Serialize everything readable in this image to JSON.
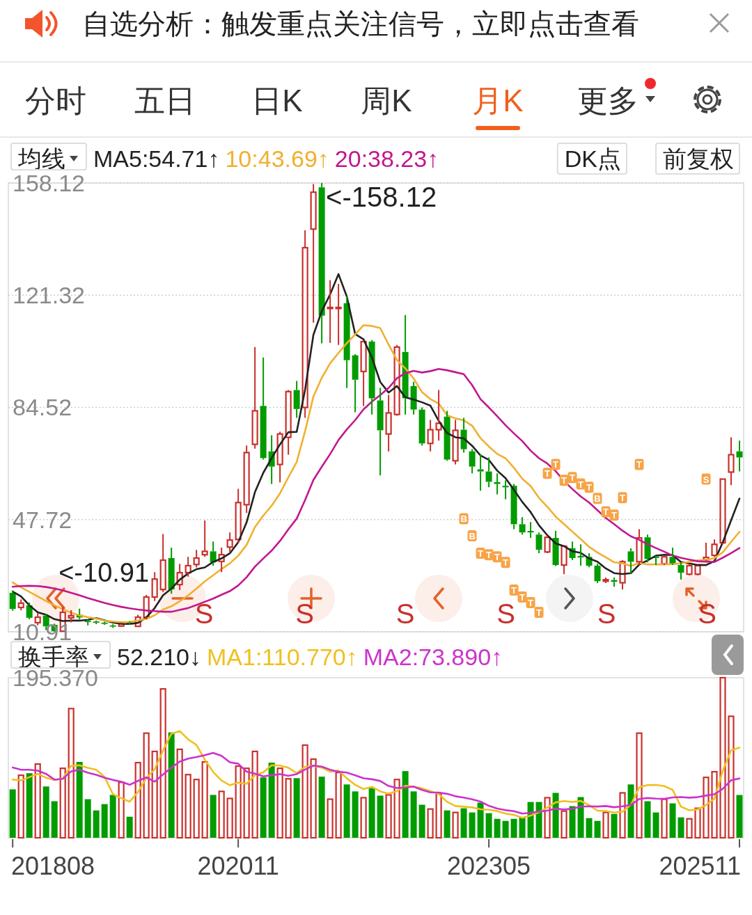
{
  "chart_data": [
    {
      "type": "other",
      "title": "自选分析：触发重点关注信号，立即点击查看",
      "annotations": [
        "分时",
        "五日",
        "日K",
        "周K",
        "月K",
        "更多",
        "DK点",
        "前复权"
      ]
    },
    {
      "type": "candlestick",
      "legend_title": "均线",
      "legend": "top",
      "grid": "y",
      "tick_labels": "y",
      "x": [
        "2018-08",
        "2018-09",
        "2018-10",
        "2018-11",
        "2018-12",
        "2019-01",
        "2019-02",
        "2019-03",
        "2019-04",
        "2019-05",
        "2019-06",
        "2019-07",
        "2019-08",
        "2019-09",
        "2019-10",
        "2019-11",
        "2019-12",
        "2020-01",
        "2020-02",
        "2020-03",
        "2020-04",
        "2020-05",
        "2020-06",
        "2020-07",
        "2020-08",
        "2020-09",
        "2020-10",
        "2020-11",
        "2020-12",
        "2021-01",
        "2021-02",
        "2021-03",
        "2021-04",
        "2021-05",
        "2021-06",
        "2021-07",
        "2021-08",
        "2021-09",
        "2021-10",
        "2021-11",
        "2021-12",
        "2022-01",
        "2022-02",
        "2022-03",
        "2022-04",
        "2022-05",
        "2022-06",
        "2022-07",
        "2022-08",
        "2022-09",
        "2022-10",
        "2022-11",
        "2022-12",
        "2023-01",
        "2023-02",
        "2023-03",
        "2023-04",
        "2023-05",
        "2023-06",
        "2023-07",
        "2023-08",
        "2023-09",
        "2023-10",
        "2023-11",
        "2023-12",
        "2024-01",
        "2024-02",
        "2024-03",
        "2024-04",
        "2024-05",
        "2024-06",
        "2024-07",
        "2024-08",
        "2024-09",
        "2024-10",
        "2024-11",
        "2024-12",
        "2025-01",
        "2025-02",
        "2025-03",
        "2025-04",
        "2025-05",
        "2025-06",
        "2025-07",
        "2025-08",
        "2025-09",
        "2025-10",
        "2025-11"
      ],
      "xlim": [
        "2018-07-16",
        "2025-11-16"
      ],
      "ylim": [
        10.91,
        158.12
      ],
      "yticks": [
        10.91,
        47.72,
        84.52,
        121.32,
        158.12
      ],
      "ohlc": [
        [
          23.7,
          24.5,
          17.8,
          18.4
        ],
        [
          18.9,
          21.5,
          18.0,
          20.3
        ],
        [
          19.6,
          20.5,
          15.0,
          15.5
        ],
        [
          13.9,
          17.0,
          13.0,
          15.7
        ],
        [
          16.2,
          16.8,
          11.5,
          12.7
        ],
        [
          13.2,
          13.6,
          10.91,
          11.1
        ],
        [
          11.1,
          19.0,
          10.95,
          17.3
        ],
        [
          15.5,
          18.0,
          14.0,
          16.2
        ],
        [
          16.5,
          18.5,
          15.0,
          15.6
        ],
        [
          14.5,
          15.0,
          13.0,
          14.1
        ],
        [
          14.3,
          14.6,
          13.4,
          13.9
        ],
        [
          13.9,
          14.2,
          13.2,
          13.5
        ],
        [
          13.0,
          13.4,
          12.2,
          12.6
        ],
        [
          12.8,
          14.0,
          12.5,
          13.6
        ],
        [
          14.0,
          14.4,
          13.2,
          13.8
        ],
        [
          12.7,
          16.5,
          12.5,
          15.7
        ],
        [
          15.7,
          23.0,
          15.0,
          22.3
        ],
        [
          22.3,
          30.5,
          21.0,
          28.2
        ],
        [
          24.8,
          43.0,
          24.0,
          34.4
        ],
        [
          35.1,
          38.5,
          23.4,
          24.8
        ],
        [
          26.4,
          33.2,
          24.6,
          30.3
        ],
        [
          30.3,
          35.5,
          29.0,
          32.6
        ],
        [
          33.0,
          37.8,
          32.0,
          35.1
        ],
        [
          36.2,
          47.4,
          35.5,
          37.3
        ],
        [
          37.3,
          40.5,
          32.6,
          33.7
        ],
        [
          34.0,
          38.5,
          30.5,
          36.2
        ],
        [
          38.7,
          43.5,
          37.1,
          41.0
        ],
        [
          41.2,
          57.8,
          40.0,
          53.3
        ],
        [
          52.6,
          72.0,
          49.9,
          69.7
        ],
        [
          72.4,
          104.3,
          71.0,
          83.4
        ],
        [
          85.0,
          100.9,
          67.4,
          67.9
        ],
        [
          70.1,
          75.4,
          59.4,
          65.1
        ],
        [
          65.8,
          76.5,
          59.9,
          75.8
        ],
        [
          74.7,
          90.2,
          69.0,
          89.7
        ],
        [
          90.2,
          93.2,
          81.1,
          84.0
        ],
        [
          84.5,
          142.6,
          81.1,
          136.9
        ],
        [
          143.0,
          157.8,
          112.3,
          155.1
        ],
        [
          156.7,
          158.12,
          105.5,
          114.6
        ],
        [
          117.0,
          126.2,
          105.7,
          117.3
        ],
        [
          117.0,
          125.0,
          105.0,
          117.3
        ],
        [
          118.7,
          121.0,
          90.9,
          100.0
        ],
        [
          101.6,
          102.0,
          82.9,
          93.6
        ],
        [
          96.3,
          106.6,
          85.0,
          106.1
        ],
        [
          106.1,
          106.6,
          82.2,
          87.5
        ],
        [
          86.8,
          90.9,
          62.2,
          77.0
        ],
        [
          75.8,
          88.6,
          70.1,
          82.7
        ],
        [
          82.2,
          105.0,
          81.8,
          104.3
        ],
        [
          102.7,
          114.8,
          82.2,
          87.5
        ],
        [
          91.5,
          92.9,
          82.2,
          83.8
        ],
        [
          83.8,
          84.5,
          72.0,
          72.7
        ],
        [
          72.7,
          80.4,
          70.1,
          77.2
        ],
        [
          77.2,
          90.2,
          73.6,
          79.3
        ],
        [
          81.5,
          83.4,
          67.0,
          67.4
        ],
        [
          67.0,
          80.4,
          65.8,
          77.0
        ],
        [
          77.2,
          81.1,
          69.7,
          70.8
        ],
        [
          70.1,
          70.8,
          62.9,
          65.1
        ],
        [
          64.2,
          69.2,
          57.2,
          63.5
        ],
        [
          63.5,
          68.1,
          58.3,
          60.1
        ],
        [
          60.0,
          62.9,
          56.0,
          59.4
        ],
        [
          58.8,
          60.6,
          54.4,
          58.3
        ],
        [
          58.8,
          59.4,
          44.6,
          46.2
        ],
        [
          46.2,
          48.5,
          42.8,
          43.5
        ],
        [
          44.0,
          46.9,
          41.7,
          43.5
        ],
        [
          42.8,
          43.5,
          36.7,
          37.8
        ],
        [
          37.1,
          42.4,
          36.7,
          41.9
        ],
        [
          41.7,
          44.0,
          32.5,
          32.8
        ],
        [
          32.8,
          39.4,
          29.8,
          39.0
        ],
        [
          38.3,
          40.5,
          34.4,
          35.1
        ],
        [
          35.8,
          39.6,
          32.6,
          35.3
        ],
        [
          35.5,
          36.7,
          32.1,
          32.6
        ],
        [
          32.6,
          33.2,
          26.9,
          27.5
        ],
        [
          27.5,
          28.7,
          26.9,
          28.0
        ],
        [
          27.9,
          28.7,
          25.7,
          27.3
        ],
        [
          27.0,
          34.4,
          24.8,
          33.9
        ],
        [
          37.3,
          38.3,
          30.0,
          33.9
        ],
        [
          33.9,
          44.6,
          32.8,
          41.7
        ],
        [
          41.9,
          42.8,
          33.7,
          34.8
        ],
        [
          35.5,
          35.8,
          32.8,
          35.1
        ],
        [
          33.2,
          36.0,
          32.8,
          35.5
        ],
        [
          35.5,
          38.5,
          32.8,
          33.2
        ],
        [
          32.8,
          33.7,
          28.0,
          30.3
        ],
        [
          29.8,
          33.2,
          29.4,
          32.6
        ],
        [
          29.8,
          32.8,
          29.4,
          32.6
        ],
        [
          34.5,
          40.1,
          34.0,
          35.3
        ],
        [
          36.0,
          41.2,
          35.5,
          39.6
        ],
        [
          40.1,
          61.0,
          39.6,
          61.0
        ],
        [
          63.3,
          74.7,
          59.0,
          69.0
        ],
        [
          70.1,
          73.6,
          63.5,
          68.1
        ]
      ],
      "series": [
        {
          "name": "MA5:54.71↑",
          "type": "line",
          "color": "#222222",
          "values": [
            24.1,
            22.5,
            19.6,
            17.3,
            16.52,
            15.06,
            14.46,
            14.6,
            14.58,
            14.86,
            15.42,
            14.66,
            13.94,
            13.54,
            13.48,
            13.84,
            15.6,
            18.72,
            22.88,
            25.08,
            28.0,
            30.06,
            31.44,
            32.02,
            33.8,
            34.98,
            36.66,
            40.3,
            46.78,
            56.72,
            63.06,
            67.88,
            72.38,
            76.38,
            76.5,
            90.3,
            108.3,
            116.06,
            121.58,
            128.24,
            120.86,
            108.56,
            106.86,
            100.9,
            92.84,
            89.38,
            91.52,
            87.8,
            87.06,
            86.2,
            85.1,
            80.1,
            76.08,
            74.72,
            74.34,
            71.92,
            68.76,
            67.3,
            63.78,
            61.28,
            57.5,
            53.5,
            50.18,
            45.86,
            42.58,
            39.9,
            39.0,
            37.32,
            36.82,
            34.96,
            33.9,
            31.7,
            30.14,
            29.86,
            30.12,
            32.96,
            34.32,
            35.88,
            36.2,
            36.06,
            33.78,
            33.34,
            32.84,
            32.8,
            34.08,
            40.22,
            47.5,
            54.6
          ]
        },
        {
          "name": "10:43.69↑",
          "type": "line",
          "color": "#f0b030",
          "values": [
            27.1,
            25.5,
            24.0,
            22.5,
            21.0,
            19.6,
            18.3,
            17.2,
            16.3,
            15.69,
            15.24,
            14.56,
            14.27,
            14.06,
            14.17,
            14.63,
            15.13,
            16.33,
            18.21,
            19.28,
            20.92,
            22.83,
            25.08,
            27.45,
            29.44,
            31.49,
            33.36,
            35.87,
            39.4,
            45.26,
            49.02,
            52.27,
            56.34,
            61.58,
            66.61,
            76.68,
            88.09,
            94.22,
            98.98,
            102.37,
            105.58,
            108.43,
            111.46,
            111.24,
            110.54,
            105.12,
            100.04,
            97.33,
            93.98,
            89.52,
            87.24,
            85.81,
            81.94,
            80.89,
            80.27,
            78.51,
            74.43,
            71.69,
            69.25,
            67.81,
            64.71,
            61.13,
            58.74,
            54.82,
            51.93,
            48.7,
            46.25,
            43.75,
            41.34,
            38.77,
            36.9,
            35.35,
            33.73,
            33.34,
            32.54,
            33.43,
            33.01,
            33.01,
            33.03,
            33.09,
            33.37,
            33.83,
            34.36,
            34.5,
            35.07,
            37.0,
            40.42,
            43.72
          ]
        },
        {
          "name": "20:38.23↑",
          "type": "line",
          "color": "#c2188f",
          "values": [
            25.7,
            25.9,
            26.0,
            25.9,
            25.6,
            25.1,
            24.5,
            23.7,
            22.9,
            22.0,
            21.2,
            20.4,
            19.7,
            19.1,
            18.6,
            18.2,
            17.9,
            17.7,
            17.5,
            17.49,
            18.08,
            18.7,
            19.68,
            20.76,
            21.81,
            23.06,
            24.25,
            26.1,
            28.81,
            32.27,
            34.97,
            37.55,
            40.71,
            44.52,
            48.03,
            54.09,
            60.73,
            65.05,
            69.19,
            73.82,
            77.3,
            80.35,
            83.9,
            86.41,
            88.58,
            90.9,
            94.07,
            95.78,
            96.48,
            95.95,
            96.41,
            97.12,
            96.7,
            96.07,
            95.41,
            91.82,
            87.24,
            84.51,
            81.62,
            78.67,
            75.98,
            73.47,
            70.34,
            67.86,
            66.1,
            63.61,
            60.34,
            57.72,
            55.3,
            53.29,
            50.81,
            48.24,
            46.24,
            44.08,
            42.24,
            41.07,
            39.63,
            38.38,
            37.19,
            35.93,
            35.14,
            34.59,
            34.05,
            33.92,
            33.81,
            35.22,
            36.72,
            38.37
          ]
        }
      ],
      "annotations": [
        "S",
        "S",
        "S",
        "S",
        "S",
        "S",
        {
          "text": "<-158.12",
          "x": "2021-09",
          "y": 158.12
        },
        {
          "text": "<-10.91",
          "x": "2019-01",
          "y": 10.91
        },
        {
          "text": "B",
          "x": "2023-02",
          "y": 48.0
        },
        {
          "text": "B",
          "x": "2023-03",
          "y": 42.4
        },
        {
          "text": "T",
          "x": "2023-04",
          "y": 36.7
        },
        {
          "text": "T",
          "x": "2023-05",
          "y": 36.2
        },
        {
          "text": "T",
          "x": "2023-06",
          "y": 35.5
        },
        {
          "text": "T",
          "x": "2023-07",
          "y": 33.7
        },
        {
          "text": "T",
          "x": "2023-08",
          "y": 24.6
        },
        {
          "text": "T",
          "x": "2023-09",
          "y": 22.3
        },
        {
          "text": "T",
          "x": "2023-10",
          "y": 20.5
        },
        {
          "text": "T",
          "x": "2023-11",
          "y": 17.3
        },
        {
          "text": "T",
          "x": "2023-12",
          "y": 62.9
        },
        {
          "text": "T",
          "x": "2024-01",
          "y": 65.8
        },
        {
          "text": "T",
          "x": "2024-02",
          "y": 60.6
        },
        {
          "text": "T",
          "x": "2024-03",
          "y": 61.5
        },
        {
          "text": "T",
          "x": "2024-04",
          "y": 59.4
        },
        {
          "text": "T",
          "x": "2024-05",
          "y": 58.3
        },
        {
          "text": "B",
          "x": "2024-06",
          "y": 54.7
        },
        {
          "text": "T",
          "x": "2024-07",
          "y": 50.3
        },
        {
          "text": "T",
          "x": "2024-08",
          "y": 49.2
        },
        {
          "text": "T",
          "x": "2024-09",
          "y": 54.9
        },
        {
          "text": "T",
          "x": "2024-11",
          "y": 65.8
        },
        {
          "text": "S",
          "x": "2025-07",
          "y": 61.0
        }
      ]
    },
    {
      "type": "bar",
      "legend_title": "换手率",
      "legend": "top",
      "x": [
        "2018-08",
        "2018-09",
        "2018-10",
        "2018-11",
        "2018-12",
        "2019-01",
        "2019-02",
        "2019-03",
        "2019-04",
        "2019-05",
        "2019-06",
        "2019-07",
        "2019-08",
        "2019-09",
        "2019-10",
        "2019-11",
        "2019-12",
        "2020-01",
        "2020-02",
        "2020-03",
        "2020-04",
        "2020-05",
        "2020-06",
        "2020-07",
        "2020-08",
        "2020-09",
        "2020-10",
        "2020-11",
        "2020-12",
        "2021-01",
        "2021-02",
        "2021-03",
        "2021-04",
        "2021-05",
        "2021-06",
        "2021-07",
        "2021-08",
        "2021-09",
        "2021-10",
        "2021-11",
        "2021-12",
        "2022-01",
        "2022-02",
        "2022-03",
        "2022-04",
        "2022-05",
        "2022-06",
        "2022-07",
        "2022-08",
        "2022-09",
        "2022-10",
        "2022-11",
        "2022-12",
        "2023-01",
        "2023-02",
        "2023-03",
        "2023-04",
        "2023-05",
        "2023-06",
        "2023-07",
        "2023-08",
        "2023-09",
        "2023-10",
        "2023-11",
        "2023-12",
        "2024-01",
        "2024-02",
        "2024-03",
        "2024-04",
        "2024-05",
        "2024-06",
        "2024-07",
        "2024-08",
        "2024-09",
        "2024-10",
        "2024-11",
        "2024-12",
        "2025-01",
        "2025-02",
        "2025-03",
        "2025-04",
        "2025-05",
        "2025-06",
        "2025-07",
        "2025-08",
        "2025-09",
        "2025-10",
        "2025-11"
      ],
      "xlim": [
        "2018-07-16",
        "2025-11-16"
      ],
      "xticks": [
        {
          "value": "2018-08",
          "label": "201808"
        },
        {
          "value": "2020-11",
          "label": "202011"
        },
        {
          "value": "2023-05",
          "label": "202305"
        },
        {
          "value": "2025-11",
          "label": "202511"
        }
      ],
      "ylim": [
        0,
        195.37
      ],
      "yticks": [
        {
          "value": 195.37,
          "label": "195.370"
        }
      ],
      "series": [
        {
          "name": "52.210↓",
          "type": "bar",
          "values": [
            59.1,
            76.3,
            78.8,
            90.0,
            62.6,
            44.6,
            84.8,
            157.7,
            92.6,
            47.1,
            33.4,
            41.1,
            52.3,
            67.7,
            25.7,
            91.7,
            127.7,
            105.4,
            181.7,
            128.6,
            108.0,
            77.1,
            71.1,
            92.6,
            52.3,
            56.6,
            48.0,
            87.4,
            84.8,
            105.4,
            73.7,
            91.7,
            84.8,
            72.0,
            72.8,
            113.1,
            96.0,
            74.6,
            47.1,
            79.7,
            65.1,
            56.6,
            48.9,
            60.8,
            51.4,
            52.3,
            71.1,
            81.4,
            56.6,
            40.3,
            35.1,
            54.0,
            33.4,
            30.9,
            36.0,
            30.9,
            42.9,
            30.0,
            23.1,
            20.6,
            23.1,
            24.9,
            43.7,
            43.7,
            48.9,
            54.8,
            32.6,
            38.6,
            49.7,
            24.0,
            20.6,
            30.9,
            29.1,
            54.8,
            65.1,
            127.7,
            44.6,
            30.9,
            47.1,
            42.0,
            24.9,
            23.1,
            36.0,
            73.7,
            80.6,
            195.37,
            148.3,
            52.21
          ],
          "colors": [
            "#009c00",
            "#c9302c",
            "#009c00",
            "#c9302c",
            "#009c00",
            "#009c00",
            "#c9302c",
            "#c9302c",
            "#009c00",
            "#009c00",
            "#009c00",
            "#009c00",
            "#009c00",
            "#c9302c",
            "#009c00",
            "#c9302c",
            "#c9302c",
            "#c9302c",
            "#c9302c",
            "#009c00",
            "#c9302c",
            "#c9302c",
            "#c9302c",
            "#c9302c",
            "#009c00",
            "#c9302c",
            "#c9302c",
            "#c9302c",
            "#c9302c",
            "#c9302c",
            "#009c00",
            "#009c00",
            "#c9302c",
            "#c9302c",
            "#009c00",
            "#c9302c",
            "#c9302c",
            "#009c00",
            "#c9302c",
            "#c9302c",
            "#009c00",
            "#009c00",
            "#c9302c",
            "#009c00",
            "#009c00",
            "#c9302c",
            "#c9302c",
            "#009c00",
            "#009c00",
            "#009c00",
            "#c9302c",
            "#c9302c",
            "#009c00",
            "#c9302c",
            "#009c00",
            "#009c00",
            "#009c00",
            "#009c00",
            "#009c00",
            "#009c00",
            "#009c00",
            "#009c00",
            "#009c00",
            "#009c00",
            "#c9302c",
            "#009c00",
            "#c9302c",
            "#009c00",
            "#009c00",
            "#009c00",
            "#009c00",
            "#c9302c",
            "#009c00",
            "#c9302c",
            "#009c00",
            "#c9302c",
            "#009c00",
            "#009c00",
            "#c9302c",
            "#009c00",
            "#009c00",
            "#c9302c",
            "#c9302c",
            "#c9302c",
            "#c9302c",
            "#c9302c",
            "#c9302c",
            "#009c00"
          ]
        },
        {
          "name": "MA1:110.770↑",
          "type": "line",
          "color": "#f0c020",
          "values": [
            71.1,
            70.0,
            74.0,
            78.0,
            73.36,
            70.46,
            72.16,
            87.94,
            88.46,
            85.36,
            83.12,
            74.38,
            53.3,
            48.32,
            44.04,
            55.7,
            73.02,
            83.64,
            106.44,
            127.02,
            130.28,
            120.16,
            113.3,
            95.48,
            80.22,
            69.94,
            64.12,
            67.38,
            65.82,
            76.44,
            79.86,
            88.6,
            88.08,
            85.52,
            79.0,
            86.88,
            87.74,
            85.7,
            80.72,
            82.1,
            72.5,
            64.62,
            59.48,
            62.22,
            56.56,
            54.0,
            56.9,
            63.4,
            62.56,
            60.34,
            56.9,
            53.48,
            43.88,
            38.74,
            37.88,
            37.04,
            34.82,
            34.14,
            32.58,
            29.5,
            27.94,
            24.34,
            27.08,
            31.2,
            36.86,
            43.2,
            44.74,
            43.72,
            44.92,
            39.94,
            33.1,
            32.76,
            30.86,
            31.88,
            40.1,
            61.52,
            64.26,
            64.62,
            63.08,
            58.46,
            37.9,
            33.6,
            34.62,
            39.94,
            47.66,
            81.75,
            106.79,
            110.04
          ]
        },
        {
          "name": "MA2:73.890↑",
          "type": "line",
          "color": "#cc33cc",
          "values": [
            85.7,
            83.0,
            83.0,
            82.0,
            78.0,
            71.0,
            72.0,
            81.0,
            83.0,
            79.36,
            76.79,
            73.27,
            70.62,
            68.39,
            64.7,
            69.41,
            73.7,
            68.47,
            77.38,
            85.53,
            92.99,
            96.59,
            98.47,
            100.96,
            103.62,
            100.11,
            92.14,
            90.34,
            80.65,
            78.33,
            74.9,
            76.36,
            77.73,
            75.67,
            77.72,
            83.37,
            88.17,
            86.89,
            83.12,
            80.55,
            79.69,
            76.18,
            72.59,
            71.47,
            69.33,
            63.25,
            60.76,
            61.44,
            62.39,
            58.45,
            55.45,
            55.19,
            53.64,
            50.65,
            49.11,
            46.97,
            44.15,
            39.01,
            35.66,
            33.69,
            32.49,
            29.58,
            30.61,
            31.89,
            33.18,
            35.57,
            34.54,
            35.4,
            38.06,
            38.4,
            38.15,
            38.75,
            37.29,
            38.4,
            40.02,
            47.31,
            48.51,
            47.74,
            47.48,
            49.28,
            49.71,
            48.93,
            49.62,
            51.51,
            53.06,
            59.83,
            70.2,
            72.33
          ]
        }
      ]
    }
  ]
}
